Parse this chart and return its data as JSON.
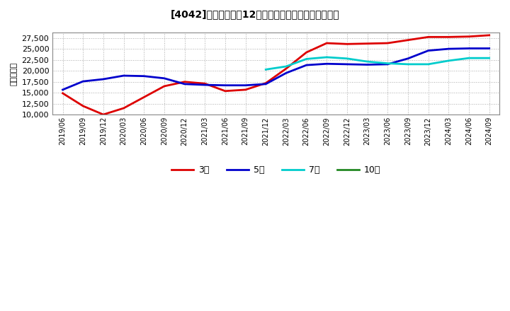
{
  "title": "[4042]　当期純利益12か月移動合計の標準偏差の推移",
  "ylabel": "（百万円）",
  "ylim": [
    10000,
    28750
  ],
  "yticks": [
    10000,
    12500,
    15000,
    17500,
    20000,
    22500,
    25000,
    27500
  ],
  "background_color": "#ffffff",
  "plot_bg_color": "#ffffff",
  "grid_color": "#aaaaaa",
  "series_3year": {
    "color": "#dd0000",
    "label": "3年",
    "x": [
      0,
      1,
      2,
      3,
      4,
      5,
      6,
      7,
      8,
      9,
      10,
      11,
      12,
      13,
      14,
      15,
      16,
      17,
      18,
      19,
      20,
      21
    ],
    "y": [
      14900,
      12000,
      10050,
      11500,
      14000,
      16500,
      17500,
      17100,
      15400,
      15700,
      17200,
      20500,
      24200,
      26300,
      26100,
      26200,
      26300,
      27000,
      27700,
      27700,
      27800,
      28100
    ]
  },
  "series_5year": {
    "color": "#0000cc",
    "label": "5年",
    "x": [
      0,
      1,
      2,
      3,
      4,
      5,
      6,
      7,
      8,
      9,
      10,
      11,
      12,
      13,
      14,
      15,
      16,
      17,
      18,
      19,
      20,
      21
    ],
    "y": [
      15700,
      17600,
      18100,
      18900,
      18800,
      18300,
      17000,
      16800,
      16700,
      16700,
      17000,
      19500,
      21300,
      21600,
      21500,
      21400,
      21500,
      22800,
      24600,
      25000,
      25100,
      25100
    ]
  },
  "series_7year": {
    "color": "#00cccc",
    "label": "7年",
    "x": [
      10,
      11,
      12,
      13,
      14,
      15,
      16,
      17,
      18,
      19,
      20,
      21
    ],
    "y": [
      20300,
      21000,
      22700,
      23100,
      22800,
      22100,
      21700,
      21500,
      21500,
      22300,
      22900,
      22900
    ]
  },
  "series_10year": {
    "color": "#228822",
    "label": "10年",
    "x": [],
    "y": []
  },
  "xtick_labels": [
    "2019/06",
    "2019/09",
    "2019/12",
    "2020/03",
    "2020/06",
    "2020/09",
    "2020/12",
    "2021/03",
    "2021/06",
    "2021/09",
    "2021/12",
    "2022/03",
    "2022/06",
    "2022/09",
    "2022/12",
    "2023/03",
    "2023/06",
    "2023/09",
    "2023/12",
    "2024/03",
    "2024/06",
    "2024/09"
  ],
  "legend_labels": [
    "3年",
    "5年",
    "7年",
    "10年"
  ],
  "legend_colors": [
    "#dd0000",
    "#0000cc",
    "#00cccc",
    "#228822"
  ]
}
